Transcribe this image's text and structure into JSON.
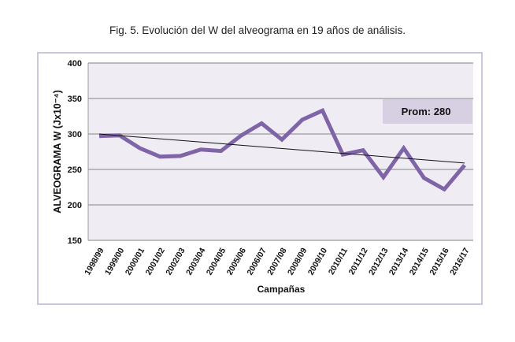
{
  "chart_data": {
    "type": "line",
    "title": "Fig. 5. Evolución del W del alveograma en 19 años de análisis.",
    "xlabel": "Campañas",
    "ylabel": "ALVEOGRAMA W (Jx10⁻⁴)",
    "ylim": [
      150,
      400
    ],
    "yticks": [
      150,
      200,
      250,
      300,
      350,
      400
    ],
    "grid": true,
    "categories": [
      "1998/99",
      "1999/00",
      "2000/01",
      "2001/02",
      "2002/03",
      "2003/04",
      "2004/05",
      "2005/06",
      "2006/07",
      "2007/08",
      "2008/09",
      "2009/10",
      "2010/11",
      "2011/12",
      "2012/13",
      "2013/14",
      "2014/15",
      "2015/16",
      "2016/17"
    ],
    "series": [
      {
        "values": [
          297,
          298,
          280,
          268,
          269,
          278,
          276,
          298,
          315,
          292,
          320,
          333,
          271,
          277,
          239,
          280,
          238,
          222,
          256
        ],
        "color": "#7f65a8"
      }
    ],
    "trendline": {
      "start": 300,
      "end": 259,
      "color": "#111111"
    },
    "annotation": "Prom: 280",
    "colors": {
      "plot_bg": "#efedf3",
      "annotation_bg": "#d7d0e3",
      "frame": "#cdc6df"
    }
  }
}
